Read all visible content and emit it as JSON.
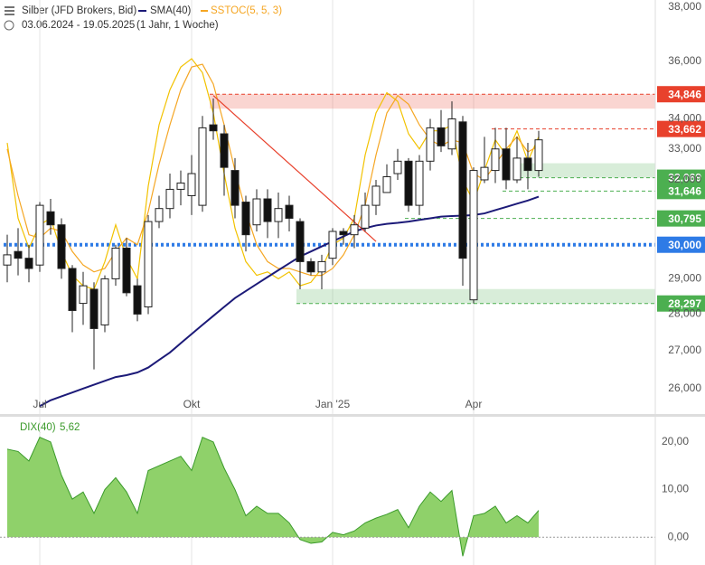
{
  "chart_data": [
    {
      "type": "candlestick",
      "title": "Silber (JFD Brokers, Bid)",
      "subtitle": "03.06.2024 - 19.05.2025",
      "period": "(1 Jahr, 1 Woche)",
      "categories": [
        null,
        null,
        null,
        "Jul",
        null,
        null,
        null,
        null,
        null,
        null,
        null,
        null,
        null,
        null,
        null,
        null,
        null,
        "Okt",
        null,
        null,
        null,
        null,
        null,
        null,
        null,
        null,
        null,
        null,
        null,
        null,
        "Jan '25",
        null,
        null,
        null,
        null,
        null,
        null,
        null,
        null,
        null,
        null,
        null,
        null,
        "Apr",
        null,
        null,
        null,
        null,
        null,
        null
      ],
      "open": [
        29400,
        29800,
        29600,
        29400,
        31000,
        30600,
        29300,
        28300,
        28700,
        27700,
        29000,
        29900,
        28800,
        28200,
        30700,
        31100,
        31700,
        31500,
        31200,
        33800,
        33500,
        32300,
        31300,
        30600,
        31400,
        30700,
        31200,
        30700,
        29500,
        29200,
        29600,
        30400,
        30300,
        30500,
        31200,
        31600,
        32200,
        32600,
        31200,
        32600,
        33700,
        33000,
        33900,
        28400,
        32000,
        32300,
        33000,
        32000,
        32700,
        32300
      ],
      "high": [
        30300,
        30500,
        30000,
        31300,
        31400,
        30800,
        29400,
        29200,
        28900,
        29100,
        30000,
        30200,
        29000,
        30900,
        31500,
        32200,
        32300,
        32800,
        34100,
        34700,
        33800,
        32700,
        31500,
        31700,
        31700,
        31600,
        31500,
        30800,
        29600,
        29700,
        30500,
        30500,
        30900,
        31600,
        32000,
        32500,
        33000,
        32700,
        32800,
        34000,
        34300,
        34600,
        34100,
        32400,
        33400,
        33700,
        33700,
        33400,
        33200,
        33600
      ],
      "low": [
        28900,
        29100,
        28900,
        29200,
        30300,
        29000,
        27500,
        27700,
        26500,
        27500,
        28800,
        28500,
        27800,
        28000,
        30500,
        30800,
        31200,
        30900,
        31000,
        33300,
        31500,
        30800,
        29800,
        30400,
        30200,
        30200,
        30400,
        28700,
        29100,
        28700,
        29400,
        30000,
        29900,
        30400,
        30900,
        31600,
        32000,
        31000,
        30900,
        32300,
        32900,
        32800,
        28800,
        28300,
        31900,
        31900,
        31700,
        31900,
        31700,
        32100
      ],
      "close": [
        29700,
        29600,
        29300,
        31200,
        30600,
        29300,
        28100,
        28800,
        27600,
        29000,
        29900,
        28600,
        28000,
        30700,
        31100,
        31700,
        31900,
        32200,
        33700,
        33600,
        32400,
        31200,
        30300,
        31400,
        30700,
        31100,
        30800,
        29500,
        29200,
        29500,
        30400,
        30300,
        30600,
        31200,
        31800,
        32100,
        32600,
        31200,
        32600,
        33700,
        33100,
        34000,
        29600,
        32300,
        32400,
        33000,
        32000,
        32700,
        32300,
        33300
      ],
      "up_color": "#ffffff",
      "down_color": "#111111",
      "series": [
        {
          "name": "SMA(40)",
          "color": "#1c1a78",
          "values": [
            null,
            null,
            null,
            25550,
            25700,
            25800,
            25900,
            26000,
            26100,
            26200,
            26300,
            26350,
            26420,
            26550,
            26750,
            26950,
            27200,
            27450,
            27700,
            27950,
            28200,
            28450,
            28650,
            28850,
            29050,
            29250,
            29450,
            29650,
            29800,
            29950,
            30100,
            30250,
            30400,
            30500,
            30580,
            30630,
            30660,
            30700,
            30750,
            30800,
            30850,
            30870,
            30880,
            30900,
            30950,
            31050,
            31150,
            31250,
            31350,
            31470
          ]
        },
        {
          "name": "SSTOC(5, 5, 3)",
          "color": "#f5a623",
          "values": [
            33000,
            31500,
            30300,
            30200,
            30500,
            30400,
            29800,
            29400,
            29200,
            29300,
            29800,
            30200,
            30000,
            31000,
            32500,
            33800,
            35000,
            35800,
            35900,
            35200,
            33800,
            32300,
            31000,
            30000,
            29500,
            29300,
            29300,
            29200,
            29100,
            29100,
            29300,
            29700,
            30300,
            31200,
            32800,
            34200,
            34800,
            34500,
            33800,
            33300,
            33100,
            33300,
            33200,
            32200,
            32000,
            32500,
            33000,
            33400,
            32900,
            33100
          ]
        },
        {
          "color": "#f2c200",
          "values": [
            33200,
            30800,
            29900,
            30600,
            30800,
            29800,
            29100,
            28800,
            28700,
            29500,
            30600,
            29600,
            29000,
            31800,
            33800,
            35000,
            35800,
            36100,
            35600,
            34200,
            32200,
            30500,
            29500,
            29100,
            29200,
            29000,
            29200,
            28800,
            28900,
            29300,
            30000,
            30200,
            30800,
            32800,
            34200,
            34900,
            34600,
            33500,
            33000,
            33600,
            33600,
            33800,
            32000,
            31300,
            32300,
            33300,
            32800,
            33600,
            32600,
            33400
          ]
        }
      ],
      "trendline": {
        "x": [
          19,
          34
        ],
        "values": [
          34800,
          30100
        ],
        "color": "#e8412c"
      },
      "levels": {
        "values": [
          34846,
          33662,
          32069,
          31646,
          30795,
          30000,
          28297
        ],
        "value_labels": [
          "34,846",
          "33,662",
          "32,069",
          "31,646",
          "30,795",
          "30,000",
          "28,297"
        ],
        "colors": [
          "#e8412c",
          "#e8412c",
          "#4caf50",
          "#4caf50",
          "#4caf50",
          "#2e7be6",
          "#4caf50"
        ],
        "styles": [
          "band",
          "dashed",
          "band",
          "dashed",
          "dashed",
          "dotted",
          "band"
        ],
        "start": [
          19,
          45,
          47,
          46,
          37,
          0,
          27
        ]
      },
      "ylim": [
        25350,
        38270
      ],
      "log": true,
      "grid": "x",
      "yticks": [
        {
          "value": 38000,
          "label": "38,000"
        },
        {
          "value": 36000,
          "label": "36,000"
        },
        {
          "value": 34000,
          "label": "34,000"
        },
        {
          "value": 33000,
          "label": "33,000"
        },
        {
          "value": 32000,
          "label": "32,000"
        },
        {
          "value": 29000,
          "label": "29,000"
        },
        {
          "value": 28000,
          "label": "28,000"
        },
        {
          "value": 27000,
          "label": "27,000"
        },
        {
          "value": 26000,
          "label": "26,000"
        }
      ]
    },
    {
      "type": "area",
      "title": "DIX(40)",
      "color": "#8fd16a",
      "line_color": "#3a9a2a",
      "values": [
        18.5,
        18,
        16,
        21,
        20,
        13,
        8,
        9.5,
        5,
        10,
        12.5,
        9.5,
        5,
        14,
        15,
        16,
        17,
        14,
        21,
        20,
        14.5,
        10,
        4.5,
        6.5,
        5,
        5,
        3,
        -0.5,
        -1.3,
        -1,
        1,
        0.5,
        1.3,
        3,
        4,
        4.8,
        5.8,
        2,
        6.5,
        9.5,
        7.5,
        9.8,
        -4,
        4.5,
        5,
        6.5,
        3,
        4.5,
        3,
        5.62
      ],
      "last_value_label": "5,62",
      "ylim": [
        -5.85,
        25.3
      ],
      "yticks": [
        {
          "value": 20,
          "label": "20,00"
        },
        {
          "value": 10,
          "label": "10,00"
        },
        {
          "value": 0,
          "label": "0,00"
        }
      ]
    }
  ]
}
